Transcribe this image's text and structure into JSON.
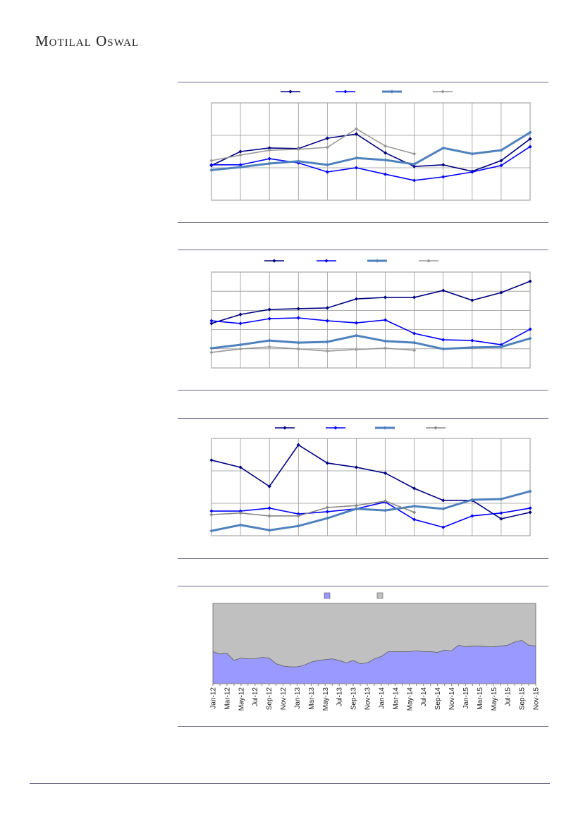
{
  "header": {
    "title": "Motilal Oswal"
  },
  "chart_data": [
    {
      "type": "line",
      "categories": [
        null,
        null,
        null,
        null,
        null,
        null,
        null,
        null,
        null,
        null,
        null,
        null
      ],
      "ylim": [
        0,
        3
      ],
      "yticks": [
        0,
        1,
        2,
        3
      ],
      "grid": true,
      "series": [
        {
          "color": "#000080",
          "values": [
            1.07,
            1.5,
            1.61,
            1.59,
            1.91,
            2.04,
            1.46,
            1.04,
            1.09,
            0.89,
            1.22,
            1.89
          ]
        },
        {
          "color": "#0000ff",
          "values": [
            1.09,
            1.09,
            1.28,
            1.15,
            0.87,
            1.0,
            0.8,
            0.61,
            0.72,
            0.87,
            1.07,
            1.65
          ]
        },
        {
          "color": "#4f81bd",
          "values": [
            0.93,
            1.02,
            1.13,
            1.2,
            1.09,
            1.3,
            1.24,
            1.11,
            1.61,
            1.43,
            1.54,
            2.09
          ]
        },
        {
          "color": "#999999",
          "values": [
            1.22,
            1.39,
            1.54,
            1.57,
            1.63,
            2.2,
            1.67,
            1.43,
            null,
            null,
            null,
            null
          ]
        }
      ]
    },
    {
      "type": "line",
      "categories": [
        null,
        null,
        null,
        null,
        null,
        null,
        null,
        null,
        null,
        null,
        null,
        null
      ],
      "ylim": [
        0,
        5
      ],
      "yticks": [
        0,
        1,
        2,
        3,
        4,
        5
      ],
      "grid": true,
      "series": [
        {
          "color": "#000080",
          "values": [
            2.32,
            2.79,
            3.05,
            3.09,
            3.13,
            3.6,
            3.68,
            3.68,
            4.04,
            3.53,
            3.93,
            4.52
          ]
        },
        {
          "color": "#0000ff",
          "values": [
            2.46,
            2.32,
            2.57,
            2.61,
            2.46,
            2.35,
            2.5,
            1.8,
            1.47,
            1.43,
            1.21,
            2.02
          ]
        },
        {
          "color": "#4f81bd",
          "values": [
            1.03,
            1.21,
            1.43,
            1.32,
            1.36,
            1.69,
            1.4,
            1.32,
            0.99,
            1.07,
            1.1,
            1.54
          ]
        },
        {
          "color": "#999999",
          "values": [
            0.81,
            0.99,
            1.1,
            0.99,
            0.88,
            0.96,
            1.03,
            0.92,
            null,
            null,
            null,
            null
          ]
        }
      ]
    },
    {
      "type": "line",
      "categories": [
        null,
        null,
        null,
        null,
        null,
        null,
        null,
        null,
        null,
        null,
        null,
        null
      ],
      "ylim": [
        0,
        3
      ],
      "yticks": [
        0,
        1,
        2,
        3
      ],
      "grid": true,
      "series": [
        {
          "color": "#000080",
          "values": [
            2.33,
            2.11,
            1.52,
            2.8,
            2.24,
            2.11,
            1.93,
            1.46,
            1.09,
            1.09,
            0.52,
            0.72
          ]
        },
        {
          "color": "#0000ff",
          "values": [
            0.76,
            0.76,
            0.85,
            0.67,
            0.74,
            0.83,
            1.04,
            0.5,
            0.26,
            0.61,
            0.7,
            0.85
          ]
        },
        {
          "color": "#4f81bd",
          "values": [
            0.15,
            0.33,
            0.17,
            0.3,
            0.54,
            0.83,
            0.78,
            0.91,
            0.83,
            1.11,
            1.13,
            1.37
          ]
        },
        {
          "color": "#888888",
          "values": [
            0.65,
            0.7,
            0.61,
            0.61,
            0.87,
            0.93,
            1.07,
            0.72,
            null,
            null,
            null,
            null
          ]
        }
      ]
    },
    {
      "type": "stacked-area",
      "categories": [
        "Jan-12",
        null,
        "Mar-12",
        null,
        "May-12",
        null,
        "Jul-12",
        null,
        "Sep-12",
        null,
        "Nov-12",
        null,
        "Jan-13",
        null,
        "Mar-13",
        null,
        "May-13",
        null,
        "Jul-13",
        null,
        "Sep-13",
        null,
        "Nov-13",
        null,
        "Jan-14",
        null,
        "Mar-14",
        null,
        "May-14",
        null,
        "Jul-14",
        null,
        "Sep-14",
        null,
        "Nov-14",
        null,
        "Jan-15",
        null,
        "Mar-15",
        null,
        "May-15",
        null,
        "Jul-15",
        null,
        "Sep-15",
        null,
        "Nov-15"
      ],
      "ylim": [
        0,
        100
      ],
      "series": [
        {
          "color": "#9999ff",
          "values": [
            40,
            37,
            38,
            29,
            32,
            31,
            31,
            33,
            32,
            25,
            22,
            21,
            21,
            23,
            27,
            29,
            30,
            31,
            29,
            26,
            29,
            25,
            26,
            31,
            34,
            40,
            40,
            40,
            40,
            41,
            40,
            40,
            39,
            42,
            41,
            48,
            46,
            47,
            47,
            46,
            46,
            47,
            48,
            52,
            54,
            48,
            47
          ]
        },
        {
          "color": "#c0c0c0",
          "values": [
            60,
            63,
            62,
            71,
            68,
            69,
            69,
            67,
            68,
            75,
            78,
            79,
            79,
            77,
            73,
            71,
            70,
            69,
            71,
            74,
            71,
            75,
            74,
            69,
            66,
            60,
            60,
            60,
            60,
            59,
            60,
            60,
            61,
            58,
            59,
            52,
            54,
            53,
            53,
            54,
            54,
            53,
            52,
            48,
            46,
            52,
            53
          ]
        }
      ]
    }
  ]
}
